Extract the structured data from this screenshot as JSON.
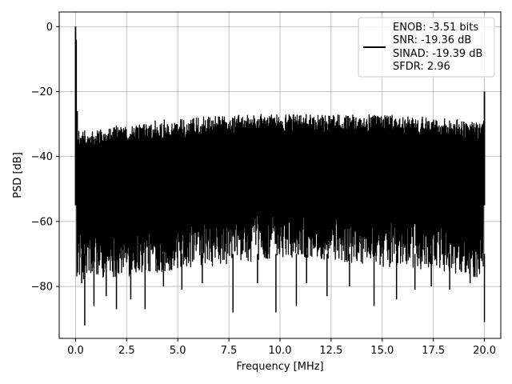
{
  "chart_data": {
    "type": "line",
    "xlabel": "Frequency [MHz]",
    "ylabel": "PSD [dB]",
    "xlim": [
      -0.8,
      20.8
    ],
    "ylim": [
      -96,
      4.5
    ],
    "xticks": [
      0.0,
      2.5,
      5.0,
      7.5,
      10.0,
      12.5,
      15.0,
      17.5,
      20.0
    ],
    "xtick_labels": [
      "0.0",
      "2.5",
      "5.0",
      "7.5",
      "10.0",
      "12.5",
      "15.0",
      "17.5",
      "20.0"
    ],
    "yticks": [
      0,
      -20,
      -40,
      -60,
      -80
    ],
    "ytick_labels": [
      "0",
      "−20",
      "−40",
      "−60",
      "−80"
    ],
    "grid": true,
    "legend_position": "top-right",
    "legend_lines": [
      "ENOB: -3.51 bits",
      "SNR: -19.36 dB",
      "SINAD: -19.39 dB",
      "SFDR: 2.96"
    ],
    "series": [
      {
        "color": "#000000",
        "description": "Dense noise floor spectrum from 0 to 20 MHz",
        "envelope_upper": {
          "x": [
            0.05,
            0.5,
            1.5,
            2.5,
            3.5,
            5.0,
            6.0,
            7.0,
            7.5,
            9.0,
            10.0,
            11.0,
            12.5,
            14.0,
            15.0,
            16.0,
            17.5,
            18.5,
            19.5,
            19.95
          ],
          "y": [
            -32,
            -32,
            -31,
            -30,
            -29,
            -28.5,
            -28,
            -27,
            -27.5,
            -27,
            -27,
            -27,
            -27,
            -27,
            -27,
            -27.5,
            -28,
            -28.5,
            -29.5,
            -30
          ]
        },
        "envelope_lower": {
          "x": [
            0.05,
            0.5,
            1.5,
            2.5,
            3.5,
            5.0,
            6.0,
            7.0,
            7.5,
            9.0,
            10.0,
            11.0,
            12.5,
            14.0,
            15.0,
            16.0,
            17.5,
            18.5,
            19.5,
            19.95
          ],
          "y": [
            -77,
            -78,
            -77,
            -77,
            -76,
            -75,
            -74,
            -74,
            -73,
            -72,
            -71,
            -71,
            -72,
            -73,
            -74,
            -74,
            -75,
            -76,
            -77,
            -78
          ]
        },
        "spikes": [
          {
            "x": 0.0,
            "y": 0
          },
          {
            "x": 0.03,
            "y": -4
          },
          {
            "x": 0.08,
            "y": -26
          },
          {
            "x": 19.97,
            "y": -29
          },
          {
            "x": 20.0,
            "y": -20
          }
        ],
        "dips": [
          {
            "x": 0.3,
            "y": -79
          },
          {
            "x": 0.45,
            "y": -92
          },
          {
            "x": 0.9,
            "y": -86
          },
          {
            "x": 1.5,
            "y": -83
          },
          {
            "x": 2.0,
            "y": -87
          },
          {
            "x": 2.7,
            "y": -84
          },
          {
            "x": 3.4,
            "y": -87
          },
          {
            "x": 4.3,
            "y": -80
          },
          {
            "x": 5.2,
            "y": -81
          },
          {
            "x": 6.2,
            "y": -79
          },
          {
            "x": 7.7,
            "y": -88
          },
          {
            "x": 8.9,
            "y": -79
          },
          {
            "x": 9.8,
            "y": -88
          },
          {
            "x": 10.8,
            "y": -86
          },
          {
            "x": 11.3,
            "y": -79
          },
          {
            "x": 12.3,
            "y": -83
          },
          {
            "x": 13.4,
            "y": -80
          },
          {
            "x": 14.6,
            "y": -86
          },
          {
            "x": 15.7,
            "y": -84
          },
          {
            "x": 16.6,
            "y": -81
          },
          {
            "x": 17.4,
            "y": -80
          },
          {
            "x": 18.3,
            "y": -81
          },
          {
            "x": 19.3,
            "y": -79
          },
          {
            "x": 20.0,
            "y": -91
          }
        ]
      }
    ]
  }
}
